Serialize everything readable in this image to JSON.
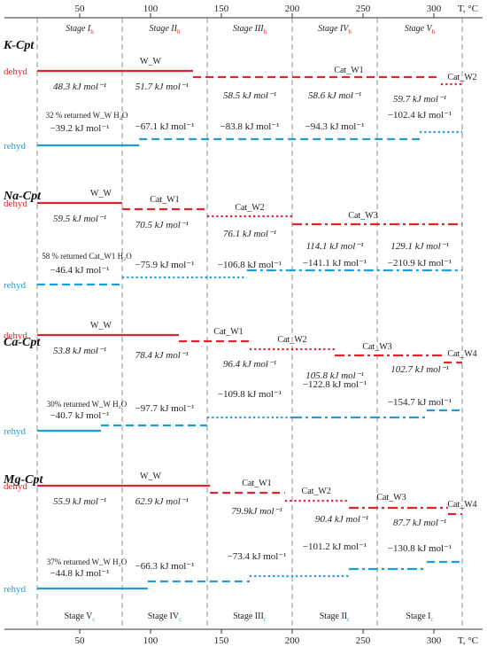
{
  "colors": {
    "dehyd": "#e0262a",
    "rehyd": "#1f9bd7",
    "axis": "#333333",
    "sub_h": "#e0262a",
    "sub_c": "#1f9bd7"
  },
  "axis": {
    "t_min": 20,
    "t_max": 325,
    "ticks": [
      50,
      100,
      150,
      200,
      250,
      300
    ],
    "unit": "T, °C",
    "boundaries": [
      80,
      140,
      200,
      260,
      320
    ]
  },
  "stages_top": [
    {
      "label": "Stage I",
      "sub": "h",
      "t": 50
    },
    {
      "label": "Stage II",
      "sub": "h",
      "t": 110
    },
    {
      "label": "Stage III",
      "sub": "h",
      "t": 170
    },
    {
      "label": "Stage IV",
      "sub": "h",
      "t": 230
    },
    {
      "label": "Stage V",
      "sub": "h",
      "t": 290
    }
  ],
  "stages_bottom": [
    {
      "label": "Stage V",
      "sub": "c",
      "t": 50
    },
    {
      "label": "Stage IV",
      "sub": "c",
      "t": 110
    },
    {
      "label": "Stage III",
      "sub": "c",
      "t": 170
    },
    {
      "label": "Stage II",
      "sub": "c",
      "t": 230
    },
    {
      "label": "Stage I",
      "sub": "c",
      "t": 290
    }
  ],
  "row_labels": {
    "dehyd": "dehyd",
    "rehyd": "rehyd"
  },
  "panels": [
    {
      "name": "K-Cpt",
      "dehyd": [
        {
          "t0": 20,
          "t1": 130,
          "style": "solid",
          "phase": "W_W",
          "energy": "48.3 kJ mol⁻¹"
        },
        {
          "t0": 130,
          "t1": 0,
          "style": "none",
          "phase": "",
          "energy": "51.7 kJ mol⁻¹"
        },
        {
          "t0": 130,
          "t1": 305,
          "style": "dash",
          "phase": "Cat_W1",
          "energy": "58.5 kJ mol⁻¹"
        },
        {
          "t0": 0,
          "t1": 0,
          "style": "none",
          "phase": "",
          "energy": "58.6 kJ mol⁻¹"
        },
        {
          "t0": 305,
          "t1": 320,
          "style": "dot",
          "phase": "Cat_W2",
          "energy": "59.7 kJ mol⁻¹"
        }
      ],
      "rehyd_note": "32 % returned W_W H₂O",
      "rehyd": [
        {
          "t0": 20,
          "t1": 92,
          "style": "solid",
          "energy": "−39.2 kJ mol⁻¹"
        },
        {
          "t0": 92,
          "t1": 290,
          "style": "dash",
          "energy": "−67.1 kJ mol⁻¹"
        },
        {
          "t0": 0,
          "t1": 0,
          "style": "none",
          "energy": "−83.8 kJ mol⁻¹"
        },
        {
          "t0": 0,
          "t1": 0,
          "style": "none",
          "energy": "−94.3 kJ mol⁻¹"
        },
        {
          "t0": 290,
          "t1": 320,
          "style": "dot",
          "energy": "−102.4 kJ mol⁻¹"
        }
      ]
    },
    {
      "name": "Na-Cpt",
      "dehyd": [
        {
          "t0": 20,
          "t1": 80,
          "style": "solid",
          "phase": "W_W",
          "energy": "59.5 kJ mol⁻¹"
        },
        {
          "t0": 80,
          "t1": 140,
          "style": "dash",
          "phase": "Cat_W1",
          "energy": "70.5 kJ mol⁻¹"
        },
        {
          "t0": 140,
          "t1": 200,
          "style": "dot",
          "phase": "Cat_W2",
          "energy": "76.1 kJ mol⁻¹"
        },
        {
          "t0": 200,
          "t1": 320,
          "style": "dashdot",
          "phase": "Cat_W3",
          "energy": "114.1 kJ mol⁻¹"
        },
        {
          "t0": 0,
          "t1": 0,
          "style": "none",
          "phase": "",
          "energy": "129.1 kJ mol⁻¹"
        }
      ],
      "rehyd_note": "58 % returned Cat_W1 H₂O",
      "rehyd": [
        {
          "t0": 20,
          "t1": 80,
          "style": "dash",
          "energy": "−46.4 kJ mol⁻¹"
        },
        {
          "t0": 80,
          "t1": 168,
          "style": "dot",
          "energy": "−75.9 kJ mol⁻¹"
        },
        {
          "t0": 168,
          "t1": 320,
          "style": "dashdot",
          "energy": "−106.8 kJ mol⁻¹"
        },
        {
          "t0": 0,
          "t1": 0,
          "style": "none",
          "energy": "−141.1 kJ mol⁻¹"
        },
        {
          "t0": 0,
          "t1": 0,
          "style": "none",
          "energy": "−210.9 kJ mol⁻¹"
        }
      ]
    },
    {
      "name": "Ca-Cpt",
      "dehyd": [
        {
          "t0": 20,
          "t1": 120,
          "style": "solid",
          "phase": "W_W",
          "energy": "53.8 kJ mol⁻¹"
        },
        {
          "t0": 120,
          "t1": 170,
          "style": "dash",
          "phase": "Cat_W1",
          "energy": "78.4 kJ mol⁻¹"
        },
        {
          "t0": 170,
          "t1": 230,
          "style": "dot",
          "phase": "Cat_W2",
          "energy": "96.4 kJ mol⁻¹"
        },
        {
          "t0": 230,
          "t1": 307,
          "style": "dashdot",
          "phase": "Cat_W3",
          "energy": "105.8 kJ mol⁻¹"
        },
        {
          "t0": 307,
          "t1": 320,
          "style": "dash",
          "phase": "Cat_W4",
          "energy": "102.7 kJ mol⁻¹"
        }
      ],
      "rehyd_note": "30% returned W_W H₂O",
      "rehyd": [
        {
          "t0": 20,
          "t1": 65,
          "style": "solid",
          "energy": "−40.7 kJ mol⁻¹"
        },
        {
          "t0": 65,
          "t1": 140,
          "style": "dash",
          "energy": "−97.7 kJ mol⁻¹"
        },
        {
          "t0": 140,
          "t1": 200,
          "style": "dot",
          "energy": "−109.8 kJ mol⁻¹"
        },
        {
          "t0": 200,
          "t1": 295,
          "style": "dashdot",
          "energy": "−122.8 kJ mol⁻¹"
        },
        {
          "t0": 295,
          "t1": 320,
          "style": "dash",
          "energy": "−154.7 kJ mol⁻¹"
        }
      ]
    },
    {
      "name": "Mg-Cpt",
      "dehyd": [
        {
          "t0": 20,
          "t1": 142,
          "style": "solid",
          "phase": "W_W",
          "energy": "55.9 kJ mol⁻¹"
        },
        {
          "t0": 0,
          "t1": 0,
          "style": "none",
          "phase": "",
          "energy": "62.9 kJ mol⁻¹"
        },
        {
          "t0": 142,
          "t1": 195,
          "style": "dash",
          "phase": "Cat_W1",
          "energy": "79.9kJ mol⁻¹"
        },
        {
          "t0": 195,
          "t1": 240,
          "style": "dot",
          "phase": "Cat_W2",
          "energy": "90.4 kJ mol⁻¹"
        },
        {
          "t0": 240,
          "t1": 310,
          "style": "dashdot",
          "phase": "Cat_W3",
          "energy": "87.7 kJ mol⁻¹"
        },
        {
          "t0": 310,
          "t1": 320,
          "style": "dash",
          "phase": "Cat_W4",
          "energy": ""
        }
      ],
      "rehyd_note": "37% returned W_W H₂O",
      "rehyd": [
        {
          "t0": 20,
          "t1": 98,
          "style": "solid",
          "energy": "−44.8 kJ mol⁻¹"
        },
        {
          "t0": 98,
          "t1": 170,
          "style": "dash",
          "energy": "−66.3 kJ mol⁻¹"
        },
        {
          "t0": 170,
          "t1": 240,
          "style": "dot",
          "energy": "−73.4 kJ mol⁻¹"
        },
        {
          "t0": 240,
          "t1": 295,
          "style": "dashdot",
          "energy": "−101.2 kJ mol⁻¹"
        },
        {
          "t0": 295,
          "t1": 320,
          "style": "dash",
          "energy": "−130.8 kJ mol⁻¹"
        }
      ]
    }
  ]
}
